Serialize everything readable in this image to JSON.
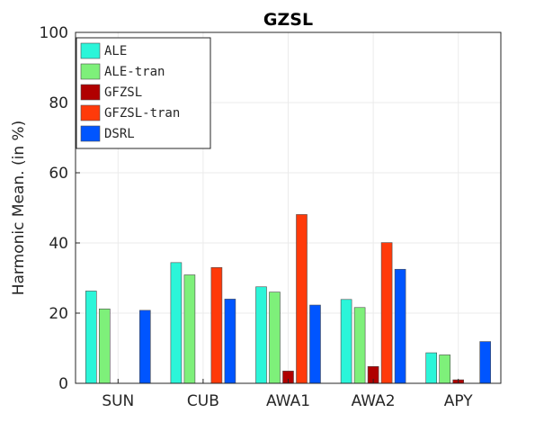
{
  "chart_data": {
    "type": "bar",
    "title": "GZSL",
    "xlabel": "",
    "ylabel": "Harmonic Mean. (in %)",
    "ylim": [
      0,
      100
    ],
    "yticks": [
      0,
      20,
      40,
      60,
      80,
      100
    ],
    "grid": true,
    "legend_position": "top-left",
    "categories": [
      "SUN",
      "CUB",
      "AWA1",
      "AWA2",
      "APY"
    ],
    "series": [
      {
        "name": "ALE",
        "color": "#2bf5d9",
        "values": [
          26.3,
          34.4,
          27.5,
          23.9,
          8.7
        ]
      },
      {
        "name": "ALE-tran",
        "color": "#7ef07a",
        "values": [
          21.2,
          30.9,
          26.0,
          21.6,
          8.1
        ]
      },
      {
        "name": "GFZSL",
        "color": "#b00000",
        "values": [
          0,
          0,
          3.5,
          4.8,
          1.0
        ]
      },
      {
        "name": "GFZSL-tran",
        "color": "#ff3a0a",
        "values": [
          0,
          33.0,
          48.1,
          40.1,
          0
        ]
      },
      {
        "name": "DSRL",
        "color": "#0055ff",
        "values": [
          20.8,
          24.0,
          22.3,
          32.5,
          11.9
        ]
      }
    ]
  }
}
